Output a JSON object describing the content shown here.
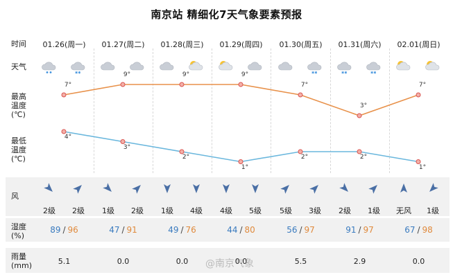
{
  "title": "南京站 精细化7天气象要素预报",
  "labels": {
    "time": "时间",
    "weather": "天气",
    "max_temp": [
      "最高",
      "温度",
      "(℃)"
    ],
    "min_temp": [
      "最低",
      "温度",
      "(℃)"
    ],
    "wind": "风",
    "humidity": [
      "湿度",
      "(%)"
    ],
    "rain": [
      "雨量",
      "(mm)"
    ]
  },
  "days": [
    {
      "date": "01.26(周一)",
      "icons": [
        "cloud-rain-icon",
        "cloud-snow-icon"
      ],
      "max": 7,
      "min": 4,
      "max_label": "7°",
      "min_label": "4°",
      "wind_levels": [
        "2级",
        "2级"
      ],
      "humidity": [
        "89",
        "96"
      ],
      "rain": "5.1"
    },
    {
      "date": "01.27(周二)",
      "icons": [
        "cloudy-icon",
        "cloudy-icon"
      ],
      "max": 9,
      "min": 3,
      "max_label": "9°",
      "min_label": "3°",
      "wind_levels": [
        "1级",
        "2级"
      ],
      "humidity": [
        "47",
        "91"
      ],
      "rain": "0.0"
    },
    {
      "date": "01.28(周三)",
      "icons": [
        "cloudy-icon",
        "partly-cloudy-icon"
      ],
      "max": 9,
      "min": 2,
      "max_label": "9°",
      "min_label": "2°",
      "wind_levels": [
        "1级",
        "4级"
      ],
      "humidity": [
        "49",
        "76"
      ],
      "rain": "0.0"
    },
    {
      "date": "01.29(周四)",
      "icons": [
        "partly-cloudy-icon",
        "cloudy-icon"
      ],
      "max": 9,
      "min": 1,
      "max_label": "9°",
      "min_label": "1°",
      "wind_levels": [
        "4级",
        "5级"
      ],
      "humidity": [
        "44",
        "80"
      ],
      "rain": "0.0"
    },
    {
      "date": "01.30(周五)",
      "icons": [
        "cloudy-icon",
        "cloud-snow-icon"
      ],
      "max": 7,
      "min": 2,
      "max_label": "7°",
      "min_label": "2°",
      "wind_levels": [
        "5级",
        "3级"
      ],
      "humidity": [
        "56",
        "97"
      ],
      "rain": "5.5"
    },
    {
      "date": "01.31(周六)",
      "icons": [
        "cloud-snow-icon",
        "cloud-snow-icon"
      ],
      "max": 3,
      "min": 2,
      "max_label": "3°",
      "min_label": "2°",
      "wind_levels": [
        "2级",
        "1级"
      ],
      "humidity": [
        "91",
        "97"
      ],
      "rain": "2.9"
    },
    {
      "date": "02.01(周日)",
      "icons": [
        "partly-cloudy-icon",
        "partly-cloudy-icon"
      ],
      "max": 7,
      "min": 1,
      "max_label": "7°",
      "min_label": "1°",
      "wind_levels": [
        "无风",
        "1级"
      ],
      "humidity": [
        "67",
        "98"
      ],
      "rain": "0.0"
    }
  ],
  "humidity_sep": "/",
  "watermark": "@南京气象",
  "colors": {
    "max_line": "#e8914a",
    "min_line": "#6ab7dd",
    "point": "#d9534f",
    "hum_low": "#3a7bbf",
    "hum_high": "#e08a3c"
  },
  "chart_data": [
    {
      "type": "line",
      "categories": [
        "01.26(周一)",
        "01.27(周二)",
        "01.28(周三)",
        "01.29(周四)",
        "01.30(周五)",
        "01.31(周六)",
        "02.01(周日)"
      ],
      "series": [
        {
          "values": [
            7,
            9,
            9,
            9,
            7,
            3,
            7
          ]
        }
      ],
      "ylabel": "最高温度(℃)"
    },
    {
      "type": "line",
      "categories": [
        "01.26(周一)",
        "01.27(周二)",
        "01.28(周三)",
        "01.29(周四)",
        "01.30(周五)",
        "01.31(周六)",
        "02.01(周日)"
      ],
      "series": [
        {
          "values": [
            4,
            3,
            2,
            1,
            2,
            2,
            1
          ]
        }
      ],
      "ylabel": "最低温度(℃)"
    }
  ]
}
